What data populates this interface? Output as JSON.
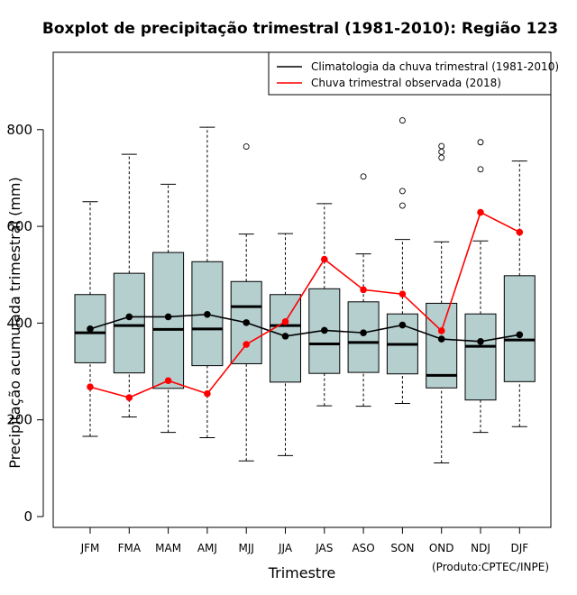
{
  "chart_data": {
    "type": "boxplot",
    "title": "Boxplot de precipitação trimestral (1981-2010): Região 123",
    "xlabel": "Trimestre",
    "ylabel": "Precipitação acumulada trimestral (mm)",
    "credit": "(Produto:CPTEC/INPE)",
    "ylim": [
      -20,
      930
    ],
    "yticks": [
      0,
      200,
      400,
      600,
      800
    ],
    "categories": [
      "JFM",
      "FMA",
      "MAM",
      "AMJ",
      "MJJ",
      "JJA",
      "JAS",
      "ASO",
      "SON",
      "OND",
      "NDJ",
      "DJF"
    ],
    "boxes": [
      {
        "whisker_low": 166,
        "q1": 318,
        "median": 380,
        "q3": 459,
        "whisker_high": 651,
        "outliers": []
      },
      {
        "whisker_low": 206,
        "q1": 297,
        "median": 395,
        "q3": 503,
        "whisker_high": 749,
        "outliers": []
      },
      {
        "whisker_low": 174,
        "q1": 265,
        "median": 387,
        "q3": 546,
        "whisker_high": 687,
        "outliers": []
      },
      {
        "whisker_low": 163,
        "q1": 312,
        "median": 388,
        "q3": 527,
        "whisker_high": 805,
        "outliers": []
      },
      {
        "whisker_low": 115,
        "q1": 316,
        "median": 434,
        "q3": 486,
        "whisker_high": 584,
        "outliers": [
          765
        ]
      },
      {
        "whisker_low": 126,
        "q1": 278,
        "median": 395,
        "q3": 459,
        "whisker_high": 585,
        "outliers": []
      },
      {
        "whisker_low": 229,
        "q1": 296,
        "median": 357,
        "q3": 471,
        "whisker_high": 647,
        "outliers": []
      },
      {
        "whisker_low": 228,
        "q1": 298,
        "median": 360,
        "q3": 444,
        "whisker_high": 543,
        "outliers": [
          703
        ]
      },
      {
        "whisker_low": 234,
        "q1": 295,
        "median": 356,
        "q3": 419,
        "whisker_high": 573,
        "outliers": [
          819,
          673,
          643
        ]
      },
      {
        "whisker_low": 111,
        "q1": 266,
        "median": 292,
        "q3": 441,
        "whisker_high": 568,
        "outliers": [
          766,
          754,
          742
        ]
      },
      {
        "whisker_low": 174,
        "q1": 241,
        "median": 352,
        "q3": 419,
        "whisker_high": 570,
        "outliers": [
          774,
          718
        ]
      },
      {
        "whisker_low": 186,
        "q1": 279,
        "median": 365,
        "q3": 498,
        "whisker_high": 735,
        "outliers": []
      }
    ],
    "series": [
      {
        "name": "Climatologia da chuva trimestral (1981-2010)",
        "color": "#000000",
        "values": [
          388,
          413,
          413,
          418,
          401,
          373,
          385,
          380,
          396,
          367,
          362,
          376
        ]
      },
      {
        "name": "Chuva trimestral observada (2018)",
        "color": "#ff0000",
        "values": [
          268,
          246,
          281,
          254,
          356,
          403,
          532,
          469,
          460,
          384,
          629,
          588
        ]
      }
    ],
    "box_fill": "#b5cece",
    "legend_position": "top-right"
  }
}
